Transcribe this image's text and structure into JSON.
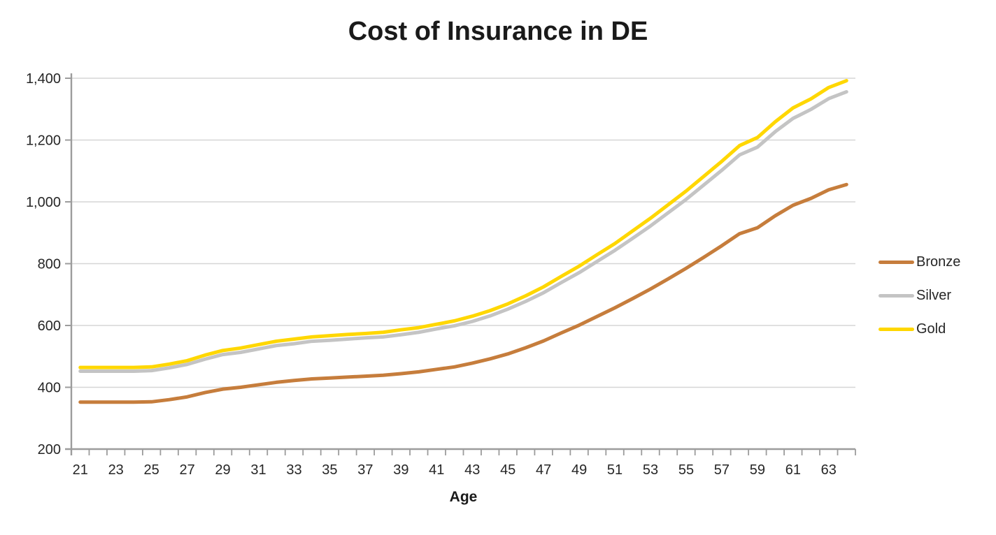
{
  "chart_data": {
    "type": "line",
    "title": "Cost of Insurance in DE",
    "xlabel": "Age",
    "ylabel": "",
    "x": [
      21,
      22,
      23,
      24,
      25,
      26,
      27,
      28,
      29,
      30,
      31,
      32,
      33,
      34,
      35,
      36,
      37,
      38,
      39,
      40,
      41,
      42,
      43,
      44,
      45,
      46,
      47,
      48,
      49,
      50,
      51,
      52,
      53,
      54,
      55,
      56,
      57,
      58,
      59,
      60,
      61,
      62,
      63,
      64
    ],
    "x_label_step": 2,
    "ylim": [
      200,
      1400
    ],
    "ytick_step": 200,
    "grid": "horizontal",
    "legend_position": "right",
    "series": [
      {
        "name": "Bronze",
        "color": "#C67D3C",
        "values": [
          352,
          352,
          352,
          352,
          353,
          360,
          369,
          383,
          394,
          400,
          408,
          416,
          422,
          427,
          430,
          433,
          436,
          439,
          444,
          450,
          458,
          466,
          478,
          492,
          508,
          528,
          550,
          576,
          601,
          629,
          657,
          687,
          718,
          751,
          785,
          821,
          858,
          897,
          916,
          955,
          989,
          1011,
          1039,
          1056
        ]
      },
      {
        "name": "Silver",
        "color": "#C4C4C4",
        "values": [
          452,
          452,
          452,
          452,
          454,
          463,
          474,
          491,
          506,
          513,
          524,
          535,
          541,
          549,
          552,
          556,
          560,
          563,
          570,
          578,
          589,
          599,
          613,
          631,
          653,
          678,
          706,
          739,
          771,
          807,
          843,
          882,
          922,
          965,
          1008,
          1055,
          1102,
          1152,
          1177,
          1227,
          1270,
          1299,
          1334,
          1356
        ]
      },
      {
        "name": "Gold",
        "color": "#FFD700",
        "values": [
          464,
          464,
          464,
          464,
          466,
          475,
          486,
          504,
          519,
          527,
          538,
          549,
          556,
          563,
          567,
          571,
          574,
          578,
          586,
          593,
          604,
          615,
          630,
          648,
          670,
          696,
          725,
          759,
          792,
          829,
          865,
          906,
          947,
          991,
          1035,
          1083,
          1131,
          1182,
          1208,
          1259,
          1304,
          1333,
          1370,
          1392
        ]
      }
    ],
    "colors": {
      "axis": "#9C9C9C",
      "grid": "#D6D6D6",
      "tick_text": "#262626",
      "title_text": "#1A1A1A"
    }
  }
}
